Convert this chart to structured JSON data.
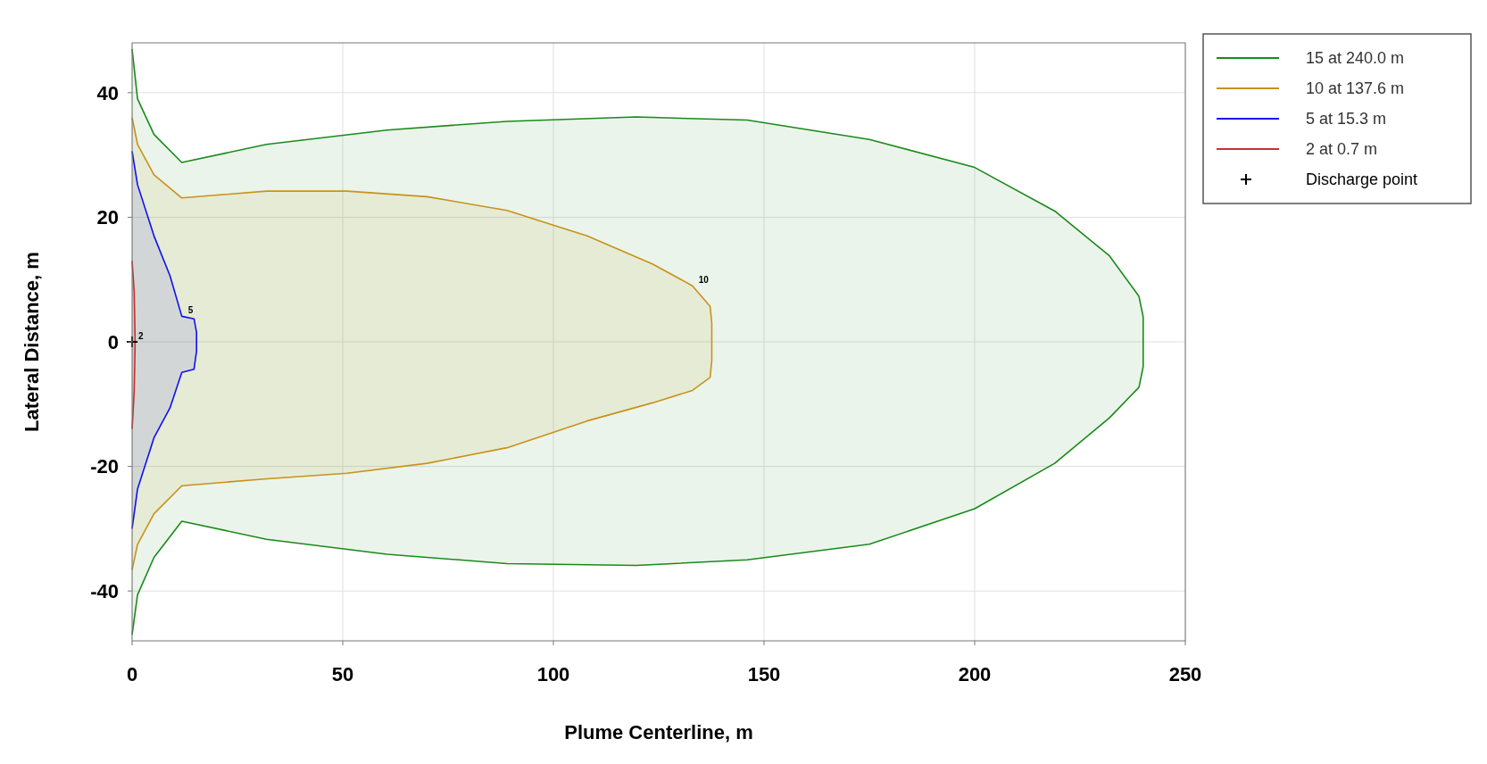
{
  "chart_data": {
    "type": "line",
    "xlabel": "Plume Centerline, m",
    "ylabel": "Lateral Distance, m",
    "xlim": [
      0,
      250
    ],
    "xticks": [
      0,
      50,
      100,
      150,
      200,
      250
    ],
    "ylim": [
      -48,
      48
    ],
    "yticks": [
      -40,
      -20,
      0,
      20,
      40
    ],
    "grid": true,
    "legend": "top right",
    "series": [
      {
        "name": "15 at 240.0 m",
        "color": "#1a8a1a",
        "x": [
          0,
          1.3,
          5.2,
          11.8,
          31.9,
          60.5,
          89,
          119.7,
          146,
          175,
          200,
          219,
          232,
          239,
          240,
          240,
          239,
          232,
          219,
          200,
          175,
          146,
          119.7,
          89,
          60.5,
          31.9,
          11.8,
          5.2,
          1.3,
          0
        ],
        "values": [
          47,
          39,
          33.3,
          28.8,
          31.7,
          34,
          35.4,
          36.1,
          35.6,
          32.5,
          28,
          21,
          13.8,
          7.3,
          4,
          -4,
          -7.3,
          -12.2,
          -19.5,
          -26.8,
          -32.5,
          -35,
          -35.9,
          -35.6,
          -34.1,
          -31.7,
          -28.8,
          -34.6,
          -40.6,
          -47
        ]
      },
      {
        "name": "10 at 137.6 m",
        "color": "#c8921a",
        "x": [
          0,
          1.3,
          5.2,
          11.8,
          31.9,
          51,
          70,
          89,
          108,
          123.5,
          133,
          137.2,
          137.6,
          137.6,
          137.2,
          133,
          123.5,
          108,
          89,
          70,
          51,
          31.9,
          11.8,
          5.2,
          1.3,
          0
        ],
        "values": [
          36,
          31.7,
          26.8,
          23.1,
          24.2,
          24.2,
          23.3,
          21.1,
          17,
          12.5,
          9,
          5.7,
          3,
          -3,
          -5.7,
          -7.8,
          -9.8,
          -12.7,
          -17,
          -19.5,
          -21.1,
          -22,
          -23.1,
          -27.6,
          -32.5,
          -36.6
        ]
      },
      {
        "name": "5 at 15.3 m",
        "color": "#1010ee",
        "x": [
          0,
          1.3,
          5.2,
          9,
          11.8,
          14.7,
          15.3,
          15.3,
          14.7,
          11.8,
          9,
          5.2,
          1.3,
          0
        ],
        "values": [
          30.6,
          25.2,
          17,
          10.6,
          4.1,
          3.7,
          1.5,
          -1.5,
          -4.4,
          -4.9,
          -10.6,
          -15.4,
          -23.6,
          -30
        ]
      },
      {
        "name": "2 at 0.7 m",
        "color": "#c83030",
        "x": [
          0,
          0.5,
          0.7,
          0.7,
          0.5,
          0
        ],
        "values": [
          13,
          8,
          1,
          -1,
          -8,
          -14
        ]
      },
      {
        "name": "Discharge point",
        "type": "scatter",
        "color": "#000000",
        "marker": "cross",
        "x": [
          0
        ],
        "values": [
          0
        ]
      }
    ],
    "annotations": [
      {
        "text": "2",
        "x": 0,
        "y": 0
      },
      {
        "text": "5",
        "x": 11.8,
        "y": 4.1
      },
      {
        "text": "10",
        "x": 133,
        "y": 9
      }
    ]
  }
}
